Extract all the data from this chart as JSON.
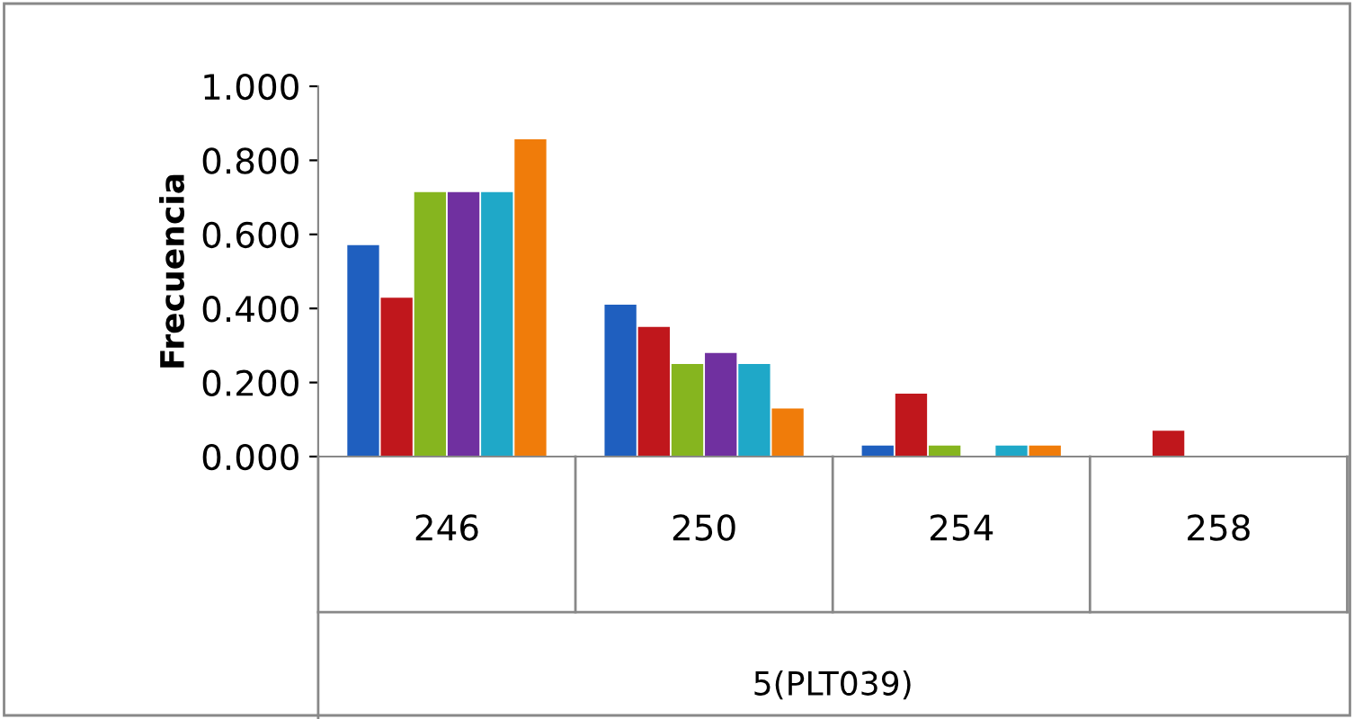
{
  "chart_data": {
    "type": "bar",
    "ylabel": "Frecuencia",
    "xlabel": "5(PLT039)",
    "categories": [
      "246",
      "250",
      "254",
      "258"
    ],
    "series": [
      {
        "color": "#1f5fbf",
        "values": [
          0.571,
          0.41,
          0.03,
          0
        ]
      },
      {
        "color": "#c0171c",
        "values": [
          0.429,
          0.35,
          0.17,
          0.07
        ]
      },
      {
        "color": "#86b51f",
        "values": [
          0.714,
          0.25,
          0.03,
          0
        ]
      },
      {
        "color": "#7030a0",
        "values": [
          0.714,
          0.28,
          0,
          0
        ]
      },
      {
        "color": "#1fa8c8",
        "values": [
          0.714,
          0.25,
          0.03,
          0
        ]
      },
      {
        "color": "#f07c0a",
        "values": [
          0.857,
          0.13,
          0.03,
          0
        ]
      }
    ],
    "ylim": [
      0,
      1
    ],
    "yticks": [
      {
        "value": 0,
        "label": "0.000"
      },
      {
        "value": 0.2,
        "label": "0.200"
      },
      {
        "value": 0.4,
        "label": "0.400"
      },
      {
        "value": 0.6,
        "label": "0.600"
      },
      {
        "value": 0.8,
        "label": "0.800"
      },
      {
        "value": 1,
        "label": "1.000"
      }
    ],
    "grid": false,
    "legend": false
  }
}
